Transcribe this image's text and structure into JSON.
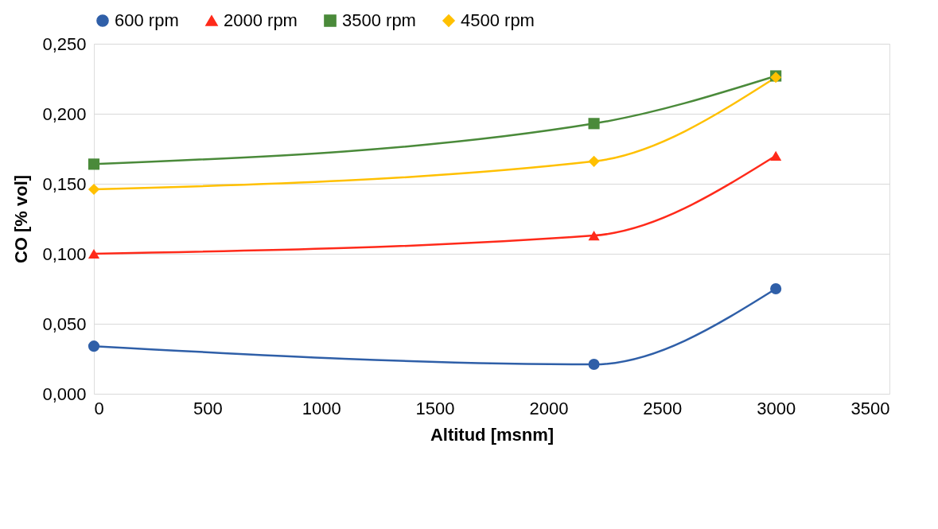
{
  "chart_data": {
    "type": "line",
    "xlabel": "Altitud [msnm]",
    "ylabel": "CO [% vol]",
    "x": [
      0,
      2200,
      3000
    ],
    "series": [
      {
        "name": "600 rpm",
        "color": "#2f5fa8",
        "marker": "circle",
        "values": [
          0.034,
          0.021,
          0.075
        ]
      },
      {
        "name": "2000 rpm",
        "color": "#ff2a1a",
        "marker": "triangle",
        "values": [
          0.1,
          0.113,
          0.17
        ]
      },
      {
        "name": "3500 rpm",
        "color": "#4a8a3a",
        "marker": "square",
        "values": [
          0.164,
          0.193,
          0.227
        ]
      },
      {
        "name": "4500 rpm",
        "color": "#ffc000",
        "marker": "diamond",
        "values": [
          0.146,
          0.166,
          0.226
        ]
      }
    ],
    "xlim": [
      0,
      3500
    ],
    "xticks": [
      0,
      500,
      1000,
      1500,
      2000,
      2500,
      3000,
      3500
    ],
    "ylim": [
      0,
      0.25
    ],
    "yticks": [
      {
        "value": 0,
        "label": "0,000"
      },
      {
        "value": 0.05,
        "label": "0,050"
      },
      {
        "value": 0.1,
        "label": "0,100"
      },
      {
        "value": 0.15,
        "label": "0,150"
      },
      {
        "value": 0.2,
        "label": "0,200"
      },
      {
        "value": 0.25,
        "label": "0,250"
      }
    ],
    "grid": "y",
    "legend": "top",
    "line_style": "solid"
  }
}
